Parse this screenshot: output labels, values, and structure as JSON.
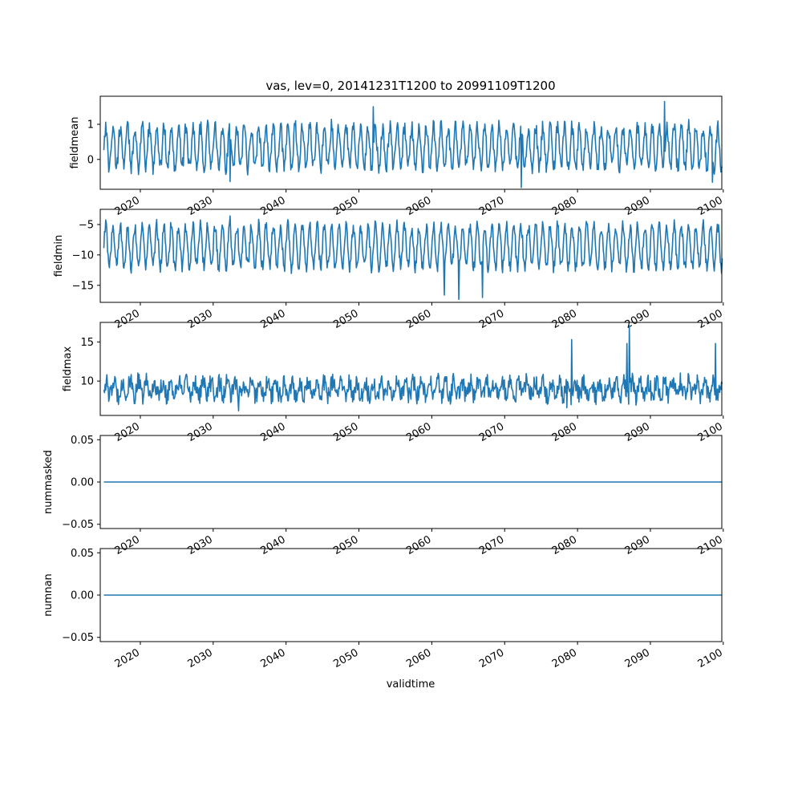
{
  "title": "vas, lev=0, 20141231T1200 to 20991109T1200",
  "xlabel": "validtime",
  "colors": {
    "series": "#1f77b4",
    "axes": "#000000"
  },
  "chart_data": [
    {
      "type": "line",
      "ylabel": "fieldmean",
      "xlim": [
        2014.5,
        2099.8
      ],
      "ylim": [
        -0.85,
        1.8
      ],
      "xticks": [
        2020,
        2030,
        2040,
        2050,
        2060,
        2070,
        2080,
        2090,
        2100
      ],
      "yticks": [
        {
          "v": 1,
          "label": "1"
        },
        {
          "v": 0,
          "label": "0"
        }
      ],
      "x_start": 2015.0,
      "x_end": 2099.85,
      "series": {
        "kind": "seasonal",
        "mean": 0.35,
        "amp": 0.58,
        "noise": 0.22,
        "period_years": 1.0,
        "extremes": [
          [
            2052,
            1.5
          ],
          [
            2072.3,
            -0.8
          ],
          [
            2091.9,
            1.65
          ],
          [
            2032.3,
            -0.63
          ],
          [
            2098.5,
            -0.65
          ]
        ]
      }
    },
    {
      "type": "line",
      "ylabel": "fieldmin",
      "xlim": [
        2014.5,
        2099.8
      ],
      "ylim": [
        -17.8,
        -2.5
      ],
      "xticks": [
        2020,
        2030,
        2040,
        2050,
        2060,
        2070,
        2080,
        2090,
        2100
      ],
      "yticks": [
        {
          "v": -5,
          "label": "−5"
        },
        {
          "v": -10,
          "label": "−10"
        },
        {
          "v": -15,
          "label": "−15"
        }
      ],
      "x_start": 2015.0,
      "x_end": 2099.85,
      "series": {
        "kind": "seasonal",
        "mean": -8.6,
        "amp": 3.4,
        "noise": 1.1,
        "period_years": 1.0,
        "extremes": [
          [
            2032.3,
            -3.6
          ],
          [
            2063.7,
            -17.3
          ],
          [
            2067.0,
            -17.0
          ],
          [
            2061.7,
            -16.6
          ]
        ]
      }
    },
    {
      "type": "line",
      "ylabel": "fieldmax",
      "xlim": [
        2014.5,
        2099.8
      ],
      "ylim": [
        5.6,
        17.5
      ],
      "xticks": [
        2020,
        2030,
        2040,
        2050,
        2060,
        2070,
        2080,
        2090,
        2100
      ],
      "yticks": [
        {
          "v": 15,
          "label": "15"
        },
        {
          "v": 10,
          "label": "10"
        }
      ],
      "x_start": 2015.0,
      "x_end": 2099.85,
      "series": {
        "kind": "noisy",
        "mean": 9.0,
        "amp": 0.9,
        "noise": 1.2,
        "period_years": 1.0,
        "extremes": [
          [
            2079.2,
            15.3
          ],
          [
            2086.8,
            14.8
          ],
          [
            2087.1,
            17.1
          ],
          [
            2098.9,
            14.8
          ],
          [
            2033.5,
            6.2
          ],
          [
            2078.5,
            6.6
          ]
        ]
      }
    },
    {
      "type": "line",
      "ylabel": "nummasked",
      "xlim": [
        2014.5,
        2099.8
      ],
      "ylim": [
        -0.055,
        0.055
      ],
      "xticks": [
        2020,
        2030,
        2040,
        2050,
        2060,
        2070,
        2080,
        2090,
        2100
      ],
      "yticks": [
        {
          "v": 0.05,
          "label": "0.05"
        },
        {
          "v": 0,
          "label": "0.00"
        },
        {
          "v": -0.05,
          "label": "−0.05"
        }
      ],
      "x_start": 2015.0,
      "x_end": 2099.85,
      "series": {
        "kind": "constant",
        "value": 0
      }
    },
    {
      "type": "line",
      "ylabel": "numnan",
      "xlim": [
        2014.5,
        2099.8
      ],
      "ylim": [
        -0.055,
        0.055
      ],
      "xticks": [
        2020,
        2030,
        2040,
        2050,
        2060,
        2070,
        2080,
        2090,
        2100
      ],
      "xtick_labels": [
        "2020",
        "2030",
        "2040",
        "2050",
        "2060",
        "2070",
        "2080",
        "2090",
        "2100"
      ],
      "yticks": [
        {
          "v": 0.05,
          "label": "0.05"
        },
        {
          "v": 0,
          "label": "0.00"
        },
        {
          "v": -0.05,
          "label": "−0.05"
        }
      ],
      "x_start": 2015.0,
      "x_end": 2099.85,
      "series": {
        "kind": "constant",
        "value": 0
      }
    }
  ]
}
